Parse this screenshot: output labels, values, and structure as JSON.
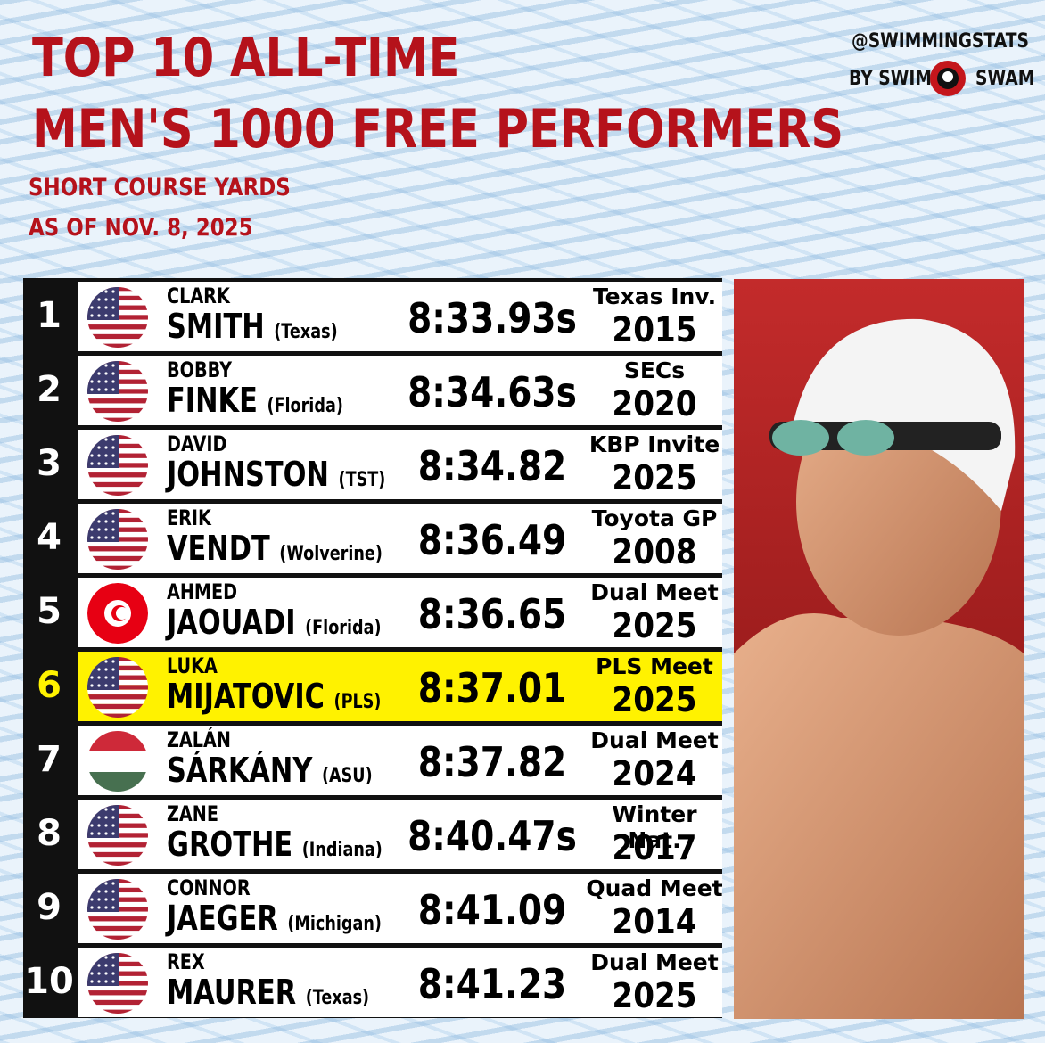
{
  "header": {
    "title_lines": [
      "TOP 10 ALL-TIME",
      "MEN'S 1000 FREE PERFORMERS"
    ],
    "course": "SHORT COURSE YARDS",
    "as_of": "AS OF NOV. 8, 2025"
  },
  "brand": {
    "handle": "@SWIMMINGSTATS",
    "by": "BY SWIM",
    "name": "SWAM"
  },
  "table": {
    "rows": [
      {
        "rank": "1",
        "first": "CLARK",
        "last": "SMITH",
        "team": "(Texas)",
        "time": "8:33.93s",
        "meet": "Texas Inv.",
        "year": "2015"
      },
      {
        "rank": "2",
        "first": "BOBBY",
        "last": "FINKE",
        "team": "(Florida)",
        "time": "8:34.63s",
        "meet": "SECs",
        "year": "2020"
      },
      {
        "rank": "3",
        "first": "DAVID",
        "last": "JOHNSTON",
        "team": "(TST)",
        "time": "8:34.82",
        "meet": "KBP Invite",
        "year": "2025"
      },
      {
        "rank": "4",
        "first": "ERIK",
        "last": "VENDT",
        "team": "(Wolverine)",
        "time": "8:36.49",
        "meet": "Toyota GP",
        "year": "2008"
      },
      {
        "rank": "5",
        "first": "AHMED",
        "last": "JAOUADI",
        "team": "(Florida)",
        "time": "8:36.65",
        "meet": "Dual Meet",
        "year": "2025"
      },
      {
        "rank": "6",
        "first": "LUKA",
        "last": "MIJATOVIC",
        "team": "(PLS)",
        "time": "8:37.01",
        "meet": "PLS Meet",
        "year": "2025"
      },
      {
        "rank": "7",
        "first": "ZALÁN",
        "last": "SÁRKÁNY",
        "team": "(ASU)",
        "time": "8:37.82",
        "meet": "Dual Meet",
        "year": "2024"
      },
      {
        "rank": "8",
        "first": "ZANE",
        "last": "GROTHE",
        "team": "(Indiana)",
        "time": "8:40.47s",
        "meet": "Winter Nat.",
        "year": "2017"
      },
      {
        "rank": "9",
        "first": "CONNOR",
        "last": "JAEGER",
        "team": "(Michigan)",
        "time": "8:41.09",
        "meet": "Quad Meet",
        "year": "2014"
      },
      {
        "rank": "10",
        "first": "REX",
        "last": "MAURER",
        "team": "(Texas)",
        "time": "8:41.23",
        "meet": "Dual Meet",
        "year": "2025"
      }
    ]
  }
}
